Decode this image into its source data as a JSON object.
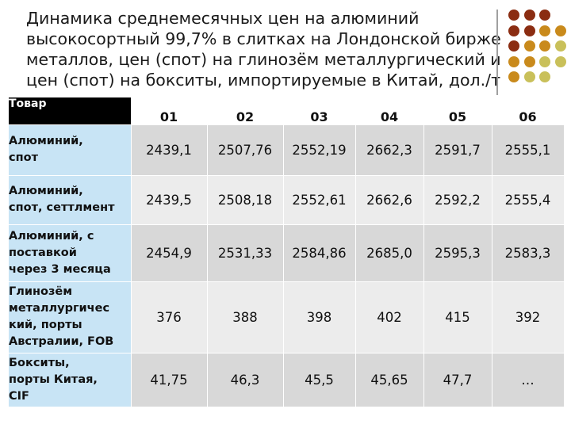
{
  "title_lines": [
    "Динамика среднемесячных цен на алюминий",
    "высокосортный 99,7% в слитках на Лондонской бирже",
    "металлов, цен (спот) на глинозём металлургический и",
    "цен (спот) на бокситы, импортируемые в Китай, дол./т"
  ],
  "table": {
    "corner_label": "Товар",
    "columns": [
      "01",
      "02",
      "03",
      "04",
      "05",
      "06"
    ],
    "rows": [
      {
        "label": [
          "Алюминий,",
          "спот"
        ],
        "values": [
          "2439,1",
          "2507,76",
          "2552,19",
          "2662,3",
          "2591,7",
          "2555,1"
        ]
      },
      {
        "label": [
          "Алюминий,",
          "спот, сеттлмент"
        ],
        "values": [
          "2439,5",
          "2508,18",
          "2552,61",
          "2662,6",
          "2592,2",
          "2555,4"
        ]
      },
      {
        "label": [
          "Алюминий, с",
          "поставкой",
          "через 3 месяца"
        ],
        "values": [
          "2454,9",
          "2531,33",
          "2584,86",
          "2685,0",
          "2595,3",
          "2583,3"
        ]
      },
      {
        "label": [
          "Глинозём",
          "металлургичес",
          "кий, порты",
          "Австралии, FOB"
        ],
        "values": [
          "376",
          "388",
          "398",
          "402",
          "415",
          "392"
        ]
      },
      {
        "label": [
          "Бокситы,",
          "порты Китая,",
          "CIF"
        ],
        "values": [
          "41,75",
          "46,3",
          "45,5",
          "45,65",
          "47,7",
          "…"
        ]
      }
    ]
  },
  "decor": {
    "dot_colors": [
      [
        "#8b2d12",
        "#8b2d12",
        "#8b2d12",
        null
      ],
      [
        "#8b2d12",
        "#8b2d12",
        "#c98a1c",
        "#c98a1c"
      ],
      [
        "#8b2d12",
        "#c98a1c",
        "#c98a1c",
        "#c9c05a"
      ],
      [
        "#c98a1c",
        "#c98a1c",
        "#c9c05a",
        "#c9c05a"
      ],
      [
        "#c98a1c",
        "#c9c05a",
        "#c9c05a",
        null
      ]
    ]
  }
}
